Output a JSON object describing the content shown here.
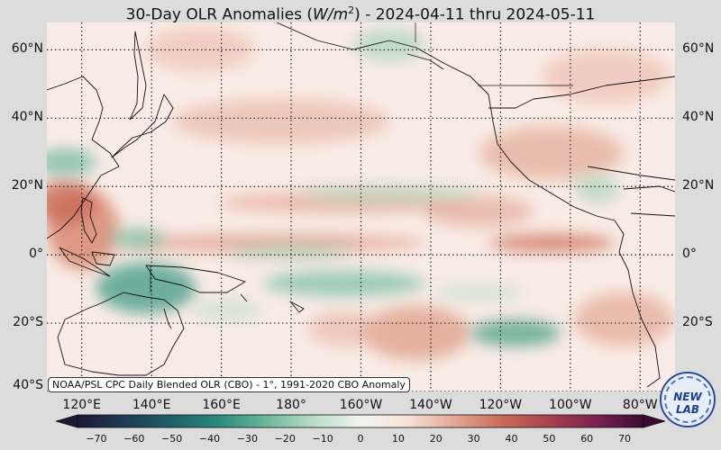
{
  "title": {
    "prefix": "30-Day OLR Anomalies (",
    "unit_base": "W/m",
    "unit_exp": "2",
    "suffix": ") - 2024-04-11 thru 2024-05-11"
  },
  "map": {
    "lon_range_east": [
      110,
      290
    ],
    "lat_range": [
      -40,
      68
    ],
    "lat_labels": [
      "60°N",
      "40°N",
      "20°N",
      "0°",
      "20°S",
      "40°S"
    ],
    "lat_values": [
      60,
      40,
      20,
      0,
      -20,
      -40
    ],
    "lon_labels": [
      "120°E",
      "140°E",
      "160°E",
      "180°",
      "160°W",
      "140°W",
      "120°W",
      "100°W",
      "80°W"
    ],
    "lon_values": [
      120,
      140,
      160,
      180,
      200,
      220,
      240,
      260,
      280
    ],
    "grid": true,
    "projection": "plate carree"
  },
  "source_note": "NOAA/PSL CPC Daily Blended OLR (CBO) - 1°, 1991-2020 CBO Anomaly",
  "colorbar": {
    "min": -75,
    "max": 75,
    "ticks": [
      "−70",
      "−60",
      "−50",
      "−40",
      "−30",
      "−20",
      "−10",
      "0",
      "10",
      "20",
      "30",
      "40",
      "50",
      "60",
      "70"
    ],
    "tick_values": [
      -70,
      -60,
      -50,
      -40,
      -30,
      -20,
      -10,
      0,
      10,
      20,
      30,
      40,
      50,
      60,
      70
    ],
    "colors": [
      "#1b1a36",
      "#1f3b55",
      "#1f6068",
      "#2a8a7d",
      "#6cb79b",
      "#b9dcc4",
      "#f1f4f1",
      "#f7e2d8",
      "#e2a693",
      "#c96a57",
      "#a8424e",
      "#7c2151",
      "#3b0a33"
    ],
    "extend": "both"
  },
  "logo": {
    "text": "NEW LAB",
    "icon": "psl-logo"
  }
}
